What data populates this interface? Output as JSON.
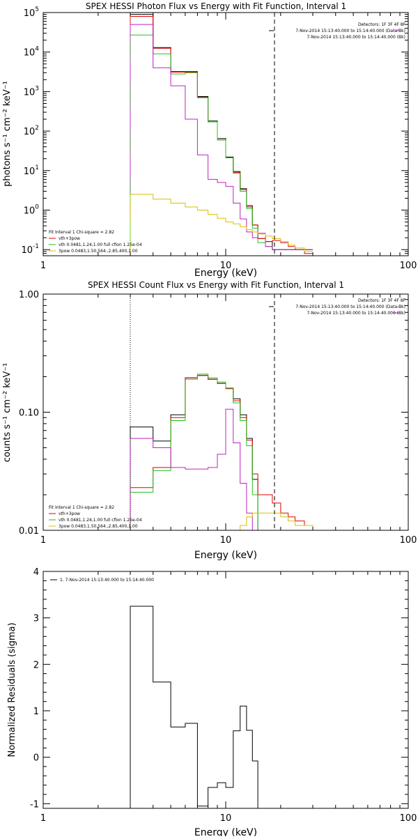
{
  "chart_data": [
    {
      "type": "line",
      "title": "SPEX HESSI Photon Flux vs Energy with Fit Function, Interval 1",
      "xlabel": "Energy (keV)",
      "ylabel": "photons s⁻¹ cm⁻² keV⁻¹",
      "x_scale": "log",
      "y_scale": "log",
      "xlim": [
        1,
        100
      ],
      "ylim": [
        0.07,
        100000
      ],
      "x_ticks": [
        {
          "v": 1,
          "label": "1"
        },
        {
          "v": 10,
          "label": "10"
        },
        {
          "v": 100,
          "label": "100"
        }
      ],
      "y_ticks": [
        {
          "v": 0.1,
          "base": "10",
          "exp": "-1"
        },
        {
          "v": 1,
          "base": "10",
          "exp": "0"
        },
        {
          "v": 10,
          "base": "10",
          "exp": "1"
        },
        {
          "v": 100,
          "base": "10",
          "exp": "2"
        },
        {
          "v": 1000,
          "base": "10",
          "exp": "3"
        },
        {
          "v": 10000,
          "base": "10",
          "exp": "4"
        },
        {
          "v": 100000,
          "base": "10",
          "exp": "5"
        }
      ],
      "vlines": [
        {
          "x": 3.0,
          "style": "dotted",
          "color": "#20c020"
        },
        {
          "x": 18.5,
          "style": "dashed",
          "color": "#000000"
        }
      ],
      "legend_right": [
        "Detectors: 1F 3F 4F 8F",
        "7-Nov-2014 15:13:40.000 to 15:14:40.000 (Data-Bk)",
        "7-Nov-2014 15:13:40.000 to 15:14:40.000 (Bk)"
      ],
      "legend_right_colors": [
        "",
        "#000000",
        "#c020c0"
      ],
      "legend_left": [
        "Fit Interval 1   Chi-square = 2.82",
        "vth+3pow",
        "vth 0.0481,1.24,1.00  full cfion 1.25e-04",
        "3pow 0.0483,1.50,564.,2.85,400,1.00"
      ],
      "legend_left_colors": [
        "",
        "#e00000",
        "#20c020",
        "#d8c000"
      ],
      "edges": [
        3.0,
        4.0,
        5.0,
        6.0,
        7.0,
        8.0,
        9.0,
        10.0,
        11.0,
        12.0,
        13.0,
        14.0,
        15.0,
        16.5,
        18.0,
        20.0,
        22.0,
        24.0,
        27.0,
        30.0
      ],
      "series": [
        {
          "color": "#000000",
          "values": [
            90000,
            13000,
            3200,
            3200,
            750,
            180,
            65,
            22,
            9.5,
            3.5,
            1.3,
            0.42,
            0.19,
            0.16,
            0.1,
            0.1,
            0.1,
            0.1,
            0.1
          ]
        },
        {
          "color": "#e00000",
          "values": [
            80000,
            12500,
            3100,
            3100,
            720,
            170,
            60,
            21,
            9,
            3.3,
            1.2,
            0.42,
            0.19,
            0.16,
            0.17,
            0.15,
            0.12,
            0.1,
            0.08
          ]
        },
        {
          "color": "#20c020",
          "values": [
            27000,
            9000,
            2800,
            3000,
            700,
            170,
            60,
            21,
            8.5,
            3.0,
            1.1,
            0.35,
            0.15,
            0.12,
            0.1,
            0.1,
            0.1,
            0.1,
            0.1
          ]
        },
        {
          "color": "#c020c0",
          "values": [
            50000,
            4000,
            1400,
            200,
            25,
            6,
            5,
            4,
            1.5,
            0.6,
            0.28,
            0.2,
            0.26,
            0.12,
            0.1,
            0.1,
            0.1,
            0.1,
            0.1
          ]
        },
        {
          "color": "#d8c000",
          "values": [
            2.5,
            1.9,
            1.5,
            1.2,
            1.0,
            0.78,
            0.62,
            0.5,
            0.45,
            0.38,
            0.32,
            0.28,
            0.25,
            0.22,
            0.19,
            0.16,
            0.13,
            0.11,
            0.09
          ]
        }
      ]
    },
    {
      "type": "line",
      "title": "SPEX HESSI Count Flux vs Energy with Fit Function, Interval 1",
      "xlabel": "Energy (keV)",
      "ylabel": "counts s⁻¹ cm⁻² keV⁻¹",
      "x_scale": "log",
      "y_scale": "log",
      "xlim": [
        1,
        100
      ],
      "ylim": [
        0.01,
        1.0
      ],
      "x_ticks": [
        {
          "v": 1,
          "label": "1"
        },
        {
          "v": 10,
          "label": "10"
        },
        {
          "v": 100,
          "label": "100"
        }
      ],
      "y_ticks": [
        {
          "v": 0.01,
          "label": "0.01"
        },
        {
          "v": 0.1,
          "label": "0.10"
        },
        {
          "v": 1.0,
          "label": "1.00"
        }
      ],
      "vlines": [
        {
          "x": 3.0,
          "style": "dotted",
          "color": "#000000"
        },
        {
          "x": 18.5,
          "style": "dashed",
          "color": "#000000"
        }
      ],
      "legend_right": [
        "Detectors: 1F 3F 4F 8F",
        "7-Nov-2014 15:13:40.000 to 15:14:40.000 (Data-Bk)",
        "7-Nov-2014 15:13:40.000 to 15:14:40.000 (Bk)"
      ],
      "legend_right_colors": [
        "",
        "#000000",
        "#c020c0"
      ],
      "legend_left": [
        "Fit Interval 1   Chi-square = 2.82",
        "vth+3pow",
        "vth 0.0481,1.24,1.00  full cfion 1.25e-04",
        "3pow 0.0483,1.50,564.,2.85,400,1.00"
      ],
      "legend_left_colors": [
        "",
        "#e00000",
        "#20c020",
        "#d8c000"
      ],
      "edges": [
        3.0,
        4.0,
        5.0,
        6.0,
        7.0,
        8.0,
        9.0,
        10.0,
        11.0,
        12.0,
        13.0,
        14.0,
        15.0,
        16.5,
        18.0,
        20.0,
        22.0,
        24.0,
        27.0,
        30.0,
        33.0,
        36.0
      ],
      "series": [
        {
          "color": "#000000",
          "values": [
            0.075,
            0.057,
            0.095,
            0.195,
            0.205,
            0.19,
            0.175,
            0.16,
            0.13,
            0.095,
            0.06,
            0.027,
            0.01,
            0.01,
            0.01,
            0.01,
            0.01,
            0.01,
            0.01,
            0.01,
            0.01
          ]
        },
        {
          "color": "#e00000",
          "values": [
            0.023,
            0.034,
            0.09,
            0.195,
            0.205,
            0.19,
            0.175,
            0.158,
            0.125,
            0.09,
            0.058,
            0.03,
            0.02,
            0.02,
            0.017,
            0.014,
            0.013,
            0.012,
            0.011,
            0.01,
            0.01
          ]
        },
        {
          "color": "#20c020",
          "values": [
            0.021,
            0.032,
            0.085,
            0.19,
            0.21,
            0.195,
            0.18,
            0.16,
            0.12,
            0.085,
            0.052,
            0.02,
            0.01,
            0.01,
            0.01,
            0.01,
            0.01,
            0.01,
            0.01,
            0.01,
            0.01
          ]
        },
        {
          "color": "#c020c0",
          "values": [
            0.06,
            0.05,
            0.034,
            0.033,
            0.033,
            0.034,
            0.044,
            0.106,
            0.055,
            0.025,
            0.014,
            0.01,
            0.01,
            0.01,
            0.01,
            0.01,
            0.01,
            0.01,
            0.01,
            0.01,
            0.01
          ]
        },
        {
          "color": "#d8c000",
          "values": [
            0.01,
            0.01,
            0.01,
            0.01,
            0.01,
            0.01,
            0.01,
            0.01,
            0.01,
            0.011,
            0.013,
            0.014,
            0.014,
            0.014,
            0.014,
            0.013,
            0.012,
            0.011,
            0.011,
            0.01,
            0.01
          ]
        }
      ]
    },
    {
      "type": "line",
      "title": "",
      "xlabel": "Energy (keV)",
      "ylabel": "Normalized Residuals (sigma)",
      "x_scale": "log",
      "y_scale": "linear",
      "xlim": [
        1,
        100
      ],
      "ylim": [
        -1.1,
        4.0
      ],
      "x_ticks": [
        {
          "v": 1,
          "label": "1"
        },
        {
          "v": 10,
          "label": "10"
        },
        {
          "v": 100,
          "label": "100"
        }
      ],
      "y_ticks": [
        {
          "v": -1,
          "label": "-1"
        },
        {
          "v": 0,
          "label": "0"
        },
        {
          "v": 1,
          "label": "1"
        },
        {
          "v": 2,
          "label": "2"
        },
        {
          "v": 3,
          "label": "3"
        },
        {
          "v": 4,
          "label": "4"
        }
      ],
      "legend_left": [
        "1.  7-Nov-2014 15:13:40.000 to 15:14:40.000"
      ],
      "legend_left_colors": [
        "#000000"
      ],
      "edges": [
        3.0,
        4.0,
        5.0,
        6.0,
        7.0,
        8.0,
        9.0,
        10.0,
        11.0,
        12.0,
        13.0,
        14.0,
        15.0,
        16.5,
        18.0
      ],
      "series": [
        {
          "color": "#000000",
          "values": [
            3.25,
            1.62,
            0.65,
            0.73,
            -1.05,
            -0.65,
            -0.55,
            -0.65,
            0.57,
            1.1,
            0.58,
            -0.08,
            -1.1,
            -1.1
          ]
        }
      ]
    }
  ]
}
